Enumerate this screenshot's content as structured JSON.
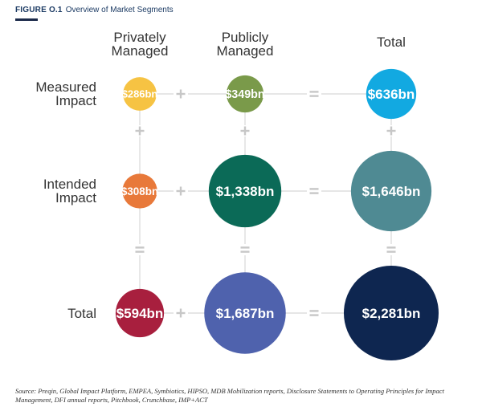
{
  "figure": {
    "label": "FIGURE O.1",
    "title": "Overview of Market Segments",
    "source_note": "Source: Preqin, Global Impact Platform, EMPEA, Symbiotics, HIPSO, MDB Mobilization reports, Disclosure Statements to Operating Principles for Impact Management, DFI annual reports, Pitchbook, Crunchbase, IMP+ACT"
  },
  "chart_data": {
    "type": "bubble-matrix",
    "columns": [
      "Privately Managed",
      "Publicly Managed",
      "Total"
    ],
    "rows": [
      "Measured Impact",
      "Intended Impact",
      "Total"
    ],
    "unit": "$bn",
    "operators": {
      "horizontal": [
        "+",
        "="
      ],
      "vertical": [
        "+",
        "="
      ]
    },
    "cells": [
      {
        "row": "Measured Impact",
        "column": "Privately Managed",
        "value": 286,
        "label": "$286bn",
        "color": "#f6c343"
      },
      {
        "row": "Measured Impact",
        "column": "Publicly Managed",
        "value": 349,
        "label": "$349bn",
        "color": "#7a9a4a"
      },
      {
        "row": "Measured Impact",
        "column": "Total",
        "value": 636,
        "label": "$636bn",
        "color": "#12a9e1"
      },
      {
        "row": "Intended Impact",
        "column": "Privately Managed",
        "value": 308,
        "label": "$308bn",
        "color": "#e8793a"
      },
      {
        "row": "Intended Impact",
        "column": "Publicly Managed",
        "value": 1338,
        "label": "$1,338bn",
        "color": "#0b6a57"
      },
      {
        "row": "Intended Impact",
        "column": "Total",
        "value": 1646,
        "label": "$1,646bn",
        "color": "#4f8a93"
      },
      {
        "row": "Total",
        "column": "Privately Managed",
        "value": 594,
        "label": "$594bn",
        "color": "#a81f3e"
      },
      {
        "row": "Total",
        "column": "Publicly Managed",
        "value": 1687,
        "label": "$1,687bn",
        "color": "#4f62ad"
      },
      {
        "row": "Total",
        "column": "Total",
        "value": 2281,
        "label": "$2,281bn",
        "color": "#0e2650"
      }
    ]
  },
  "colors": {
    "connector": "#d8d8d8",
    "operator": "#c7c7c7",
    "heading_text": "#333333",
    "value_text": "#ffffff",
    "header_text": "#1b3a63"
  }
}
